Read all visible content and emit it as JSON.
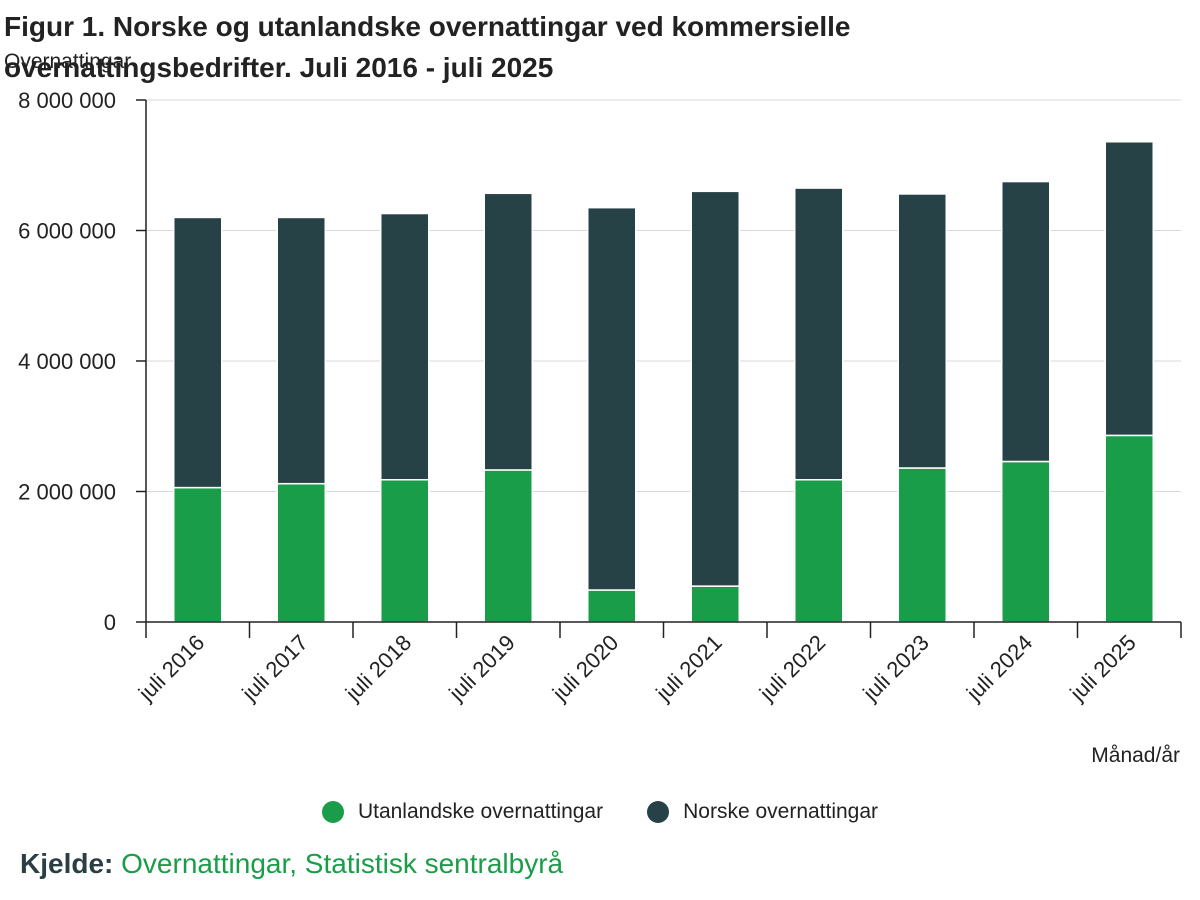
{
  "figure": {
    "title": "Figur 1. Norske og utanlandske overnattingar ved kommersielle overnattingsbedrifter. Juli 2016 - juli 2025",
    "source_label": "Kjelde:",
    "source_text": "Overnattingar, Statistisk sentralbyrå"
  },
  "chart_data": {
    "type": "bar",
    "stacked": true,
    "title": "Figur 1. Norske og utanlandske overnattingar ved kommersielle overnattingsbedrifter. Juli 2016 - juli 2025",
    "ylabel": "Overnattingar",
    "xlabel": "Månad/år",
    "ylim": [
      0,
      8000000
    ],
    "yticks": [
      0,
      2000000,
      4000000,
      6000000,
      8000000
    ],
    "ytick_labels": [
      "0",
      "2 000 000",
      "4 000 000",
      "6 000 000",
      "8 000 000"
    ],
    "grid": true,
    "legend_position": "bottom",
    "categories": [
      "juli 2016",
      "juli 2017",
      "juli 2018",
      "juli 2019",
      "juli 2020",
      "juli 2021",
      "juli 2022",
      "juli 2023",
      "juli 2024",
      "juli 2025"
    ],
    "series": [
      {
        "name": "Utanlandske overnattingar",
        "color": "#1a9d49",
        "values": [
          2060000,
          2120000,
          2180000,
          2330000,
          490000,
          550000,
          2180000,
          2360000,
          2460000,
          2860000
        ]
      },
      {
        "name": "Norske overnattingar",
        "color": "#274247",
        "values": [
          4140000,
          4080000,
          4080000,
          4240000,
          5860000,
          6050000,
          4470000,
          4200000,
          4290000,
          4500000
        ]
      }
    ]
  }
}
